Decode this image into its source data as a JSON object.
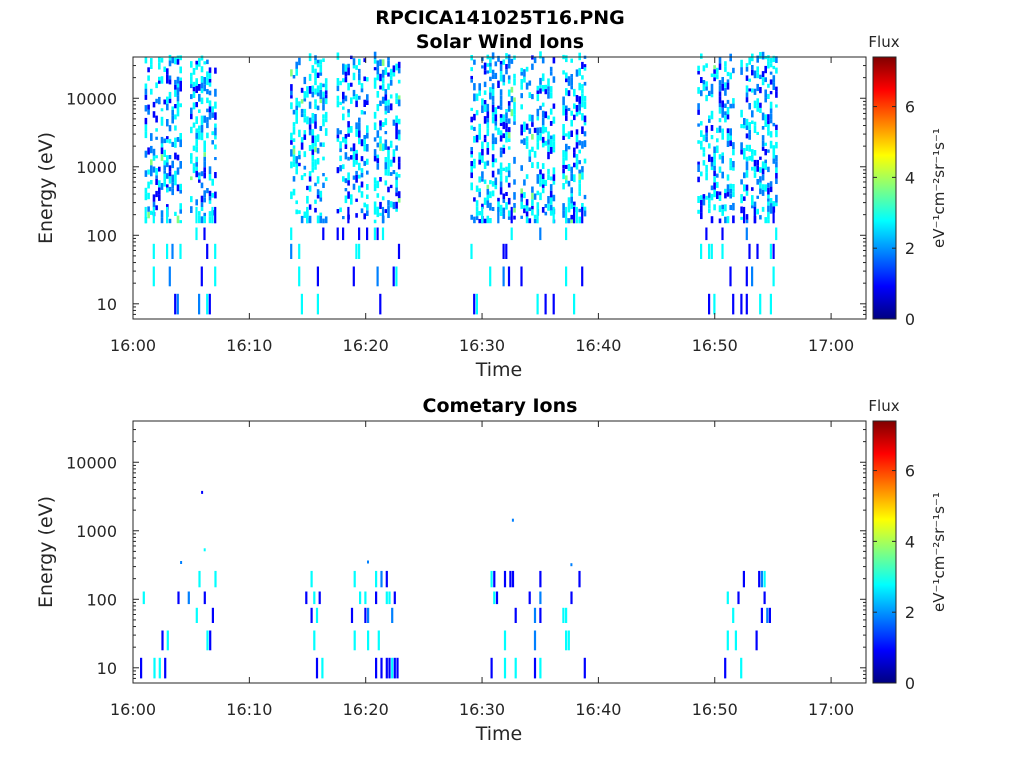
{
  "figure_title": "RPCICA141025T16.PNG",
  "colormap": [
    "#000080",
    "#0000ff",
    "#0080ff",
    "#00ffff",
    "#80ff80",
    "#ffff00",
    "#ff8000",
    "#ff0000",
    "#800000"
  ],
  "chart_data": [
    {
      "type": "heatmap",
      "title": "Solar Wind Ions",
      "xlabel": "Time",
      "ylabel": "Energy (eV)",
      "yscale": "log",
      "ylim": [
        6,
        40000
      ],
      "xlim_minutes_after_1600": [
        0,
        63
      ],
      "x_ticks": [
        "16:00",
        "16:10",
        "16:20",
        "16:30",
        "16:40",
        "16:50",
        "17:00"
      ],
      "y_ticks": [
        "10",
        "100",
        "1000",
        "10000"
      ],
      "colorbar": {
        "label": "Flux",
        "units": "eV⁻¹cm⁻²sr⁻¹s⁻¹",
        "range": [
          0,
          7.4
        ],
        "ticks": [
          "0",
          "2",
          "4",
          "6"
        ]
      },
      "bursts_minutes_after_1600": [
        [
          1.0,
          4.1
        ],
        [
          4.9,
          7.1
        ],
        [
          13.5,
          16.7
        ],
        [
          17.5,
          20.2
        ],
        [
          20.7,
          23.0
        ],
        [
          29.0,
          32.7
        ],
        [
          33.3,
          36.2
        ],
        [
          36.9,
          38.9
        ],
        [
          48.5,
          51.7
        ],
        [
          52.2,
          55.2
        ]
      ]
    },
    {
      "type": "heatmap",
      "title": "Cometary Ions",
      "xlabel": "Time",
      "ylabel": "Energy (eV)",
      "yscale": "log",
      "ylim": [
        6,
        40000
      ],
      "xlim_minutes_after_1600": [
        0,
        63
      ],
      "x_ticks": [
        "16:00",
        "16:10",
        "16:20",
        "16:30",
        "16:40",
        "16:50",
        "17:00"
      ],
      "y_ticks": [
        "10",
        "100",
        "1000",
        "10000"
      ],
      "colorbar": {
        "label": "Flux",
        "units": "eV⁻¹cm⁻²sr⁻¹s⁻¹",
        "range": [
          0,
          7.4
        ],
        "ticks": [
          "0",
          "2",
          "4",
          "6"
        ]
      },
      "bursts_minutes_after_1600": [
        [
          0.6,
          4.5
        ],
        [
          4.7,
          7.1
        ],
        [
          14.8,
          17.5
        ],
        [
          18.5,
          20.2
        ],
        [
          20.8,
          22.9
        ],
        [
          30.5,
          33.0
        ],
        [
          34.0,
          35.5
        ],
        [
          36.9,
          38.9
        ],
        [
          50.8,
          52.5
        ],
        [
          53.5,
          55.2
        ]
      ]
    }
  ]
}
